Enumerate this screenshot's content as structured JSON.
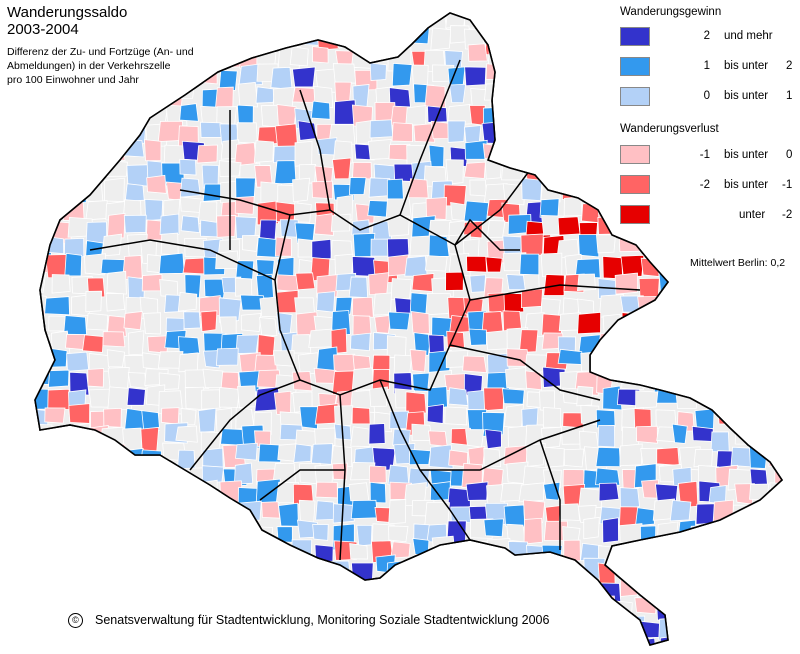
{
  "title": {
    "line1": "Wanderungssaldo",
    "line2": "2003-2004"
  },
  "subtitle": {
    "line1": "Differenz der Zu- und Fortzüge (An- und",
    "line2": "Abmeldungen) in der Verkehrszelle",
    "line3": "pro 100 Einwohner und Jahr"
  },
  "legend": {
    "gain_heading": "Wanderungsgewinn",
    "loss_heading": "Wanderungsverlust",
    "gain": [
      {
        "value": "2",
        "relation": "und mehr",
        "upper": "",
        "color": "#3333cc"
      },
      {
        "value": "1",
        "relation": "bis unter",
        "upper": "2",
        "color": "#3399ee"
      },
      {
        "value": "0",
        "relation": "bis unter",
        "upper": "1",
        "color": "#b3d1f7"
      }
    ],
    "loss": [
      {
        "value": "-1",
        "relation": "bis unter",
        "upper": "0",
        "color": "#ffc0c4"
      },
      {
        "value": "-2",
        "relation": "bis unter",
        "upper": "-1",
        "color": "#ff6464"
      },
      {
        "value": "",
        "relation": "unter",
        "upper": "-2",
        "color": "#e60000"
      }
    ],
    "mean_label": "Mittelwert Berlin: 0,2"
  },
  "footer": {
    "copyright_symbol": "©",
    "credit": "Senatsverwaltung für Stadtentwicklung, Monitoring Soziale Stadtentwicklung 2006"
  },
  "map": {
    "outline_fill": "#eeeeee",
    "border_color": "#000000",
    "seed": 7
  }
}
